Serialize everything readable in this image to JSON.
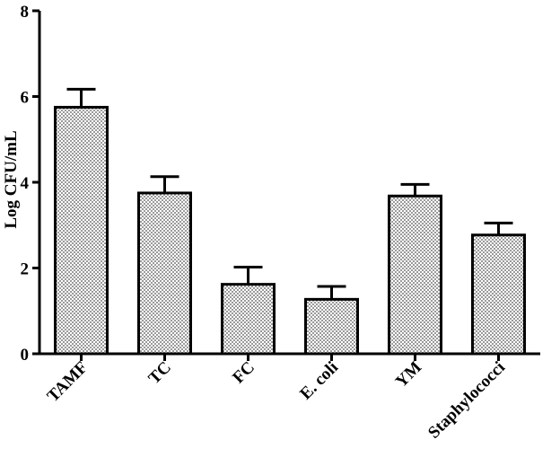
{
  "chart_data": {
    "type": "bar",
    "title": "",
    "xlabel": "",
    "ylabel": "Log CFU/mL",
    "ylim": [
      0,
      8
    ],
    "yticks": [
      0,
      2,
      4,
      6,
      8
    ],
    "categories": [
      "TAMF",
      "TC",
      "FC",
      "E. coli",
      "YM",
      "Staphylococci"
    ],
    "values": [
      5.75,
      3.75,
      1.62,
      1.27,
      3.68,
      2.77
    ],
    "errors": [
      0.42,
      0.38,
      0.4,
      0.3,
      0.27,
      0.28
    ],
    "grid": false,
    "bar_fill": "crosshatch pattern, gray",
    "colors": {
      "bar_base": "#9a9a9a",
      "hatch": "#ffffff",
      "stroke": "#000000"
    }
  }
}
